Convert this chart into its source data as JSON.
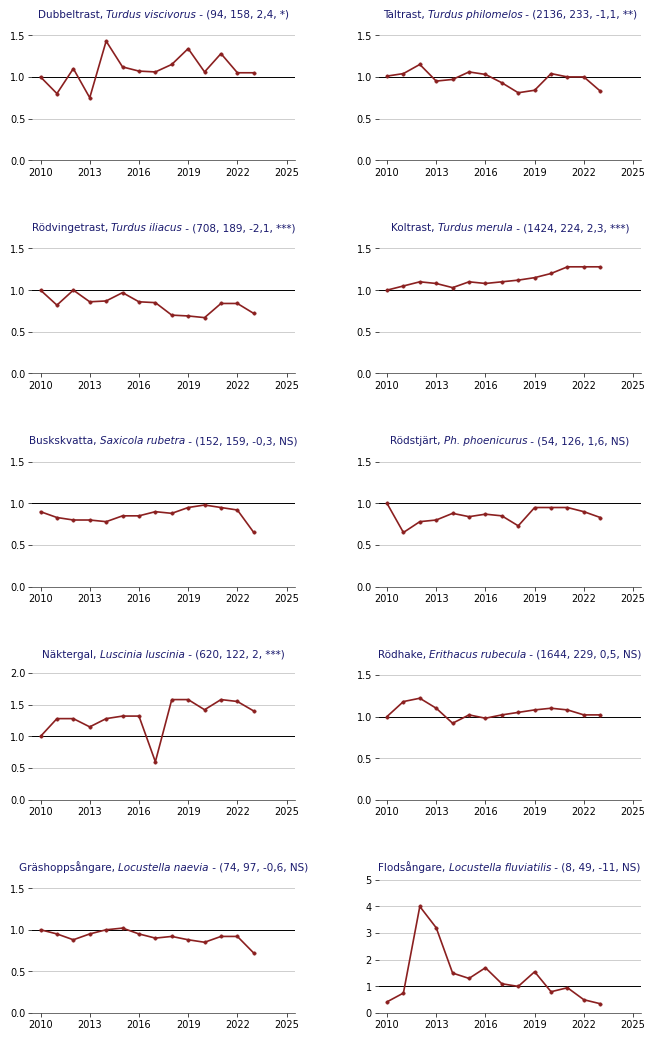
{
  "plots": [
    {
      "title_normal": "Dubbeltrast, ",
      "title_italic": "Turdus viscivorus",
      "title_suffix": " - (94, 158, 2,4, *)",
      "years": [
        2010,
        2011,
        2012,
        2013,
        2014,
        2015,
        2016,
        2017,
        2018,
        2019,
        2020,
        2021,
        2022,
        2023
      ],
      "values": [
        1.0,
        0.8,
        1.1,
        0.75,
        1.43,
        1.12,
        1.07,
        1.06,
        1.15,
        1.34,
        1.06,
        1.28,
        1.05,
        1.05
      ],
      "ylim": [
        0.0,
        1.6
      ],
      "yticks": [
        0.0,
        0.5,
        1.0,
        1.5
      ]
    },
    {
      "title_normal": "Taltrast, ",
      "title_italic": "Turdus philomelos",
      "title_suffix": " - (2136, 233, -1,1, **)",
      "years": [
        2010,
        2011,
        2012,
        2013,
        2014,
        2015,
        2016,
        2017,
        2018,
        2019,
        2020,
        2021,
        2022,
        2023
      ],
      "values": [
        1.01,
        1.04,
        1.15,
        0.95,
        0.97,
        1.06,
        1.03,
        0.93,
        0.81,
        0.84,
        1.04,
        1.0,
        1.0,
        0.83
      ],
      "ylim": [
        0.0,
        1.6
      ],
      "yticks": [
        0.0,
        0.5,
        1.0,
        1.5
      ]
    },
    {
      "title_normal": "Rödvingetrast, ",
      "title_italic": "Turdus iliacus",
      "title_suffix": " - (708, 189, -2,1, ***)",
      "years": [
        2010,
        2011,
        2012,
        2013,
        2014,
        2015,
        2016,
        2017,
        2018,
        2019,
        2020,
        2021,
        2022,
        2023
      ],
      "values": [
        1.0,
        0.82,
        1.0,
        0.86,
        0.87,
        0.97,
        0.86,
        0.85,
        0.7,
        0.69,
        0.67,
        0.84,
        0.84,
        0.72
      ],
      "ylim": [
        0.0,
        1.6
      ],
      "yticks": [
        0.0,
        0.5,
        1.0,
        1.5
      ]
    },
    {
      "title_normal": "Koltrast, ",
      "title_italic": "Turdus merula",
      "title_suffix": " - (1424, 224, 2,3, ***)",
      "years": [
        2010,
        2011,
        2012,
        2013,
        2014,
        2015,
        2016,
        2017,
        2018,
        2019,
        2020,
        2021,
        2022,
        2023
      ],
      "values": [
        1.0,
        1.05,
        1.1,
        1.08,
        1.03,
        1.1,
        1.08,
        1.1,
        1.12,
        1.15,
        1.2,
        1.28,
        1.28,
        1.28
      ],
      "ylim": [
        0.0,
        1.6
      ],
      "yticks": [
        0.0,
        0.5,
        1.0,
        1.5
      ]
    },
    {
      "title_normal": "Buskskvatta, ",
      "title_italic": "Saxicola rubetra",
      "title_suffix": " - (152, 159, -0,3, NS)",
      "years": [
        2010,
        2011,
        2012,
        2013,
        2014,
        2015,
        2016,
        2017,
        2018,
        2019,
        2020,
        2021,
        2022,
        2023
      ],
      "values": [
        0.9,
        0.83,
        0.8,
        0.8,
        0.78,
        0.85,
        0.85,
        0.9,
        0.88,
        0.95,
        0.98,
        0.95,
        0.92,
        0.65
      ],
      "ylim": [
        0.0,
        1.6
      ],
      "yticks": [
        0.0,
        0.5,
        1.0,
        1.5
      ]
    },
    {
      "title_normal": "Rödstjärt, ",
      "title_italic": "Ph. phoenicurus",
      "title_suffix": " - (54, 126, 1,6, NS)",
      "years": [
        2010,
        2011,
        2012,
        2013,
        2014,
        2015,
        2016,
        2017,
        2018,
        2019,
        2020,
        2021,
        2022,
        2023
      ],
      "values": [
        1.0,
        0.65,
        0.78,
        0.8,
        0.88,
        0.84,
        0.87,
        0.85,
        0.73,
        0.95,
        0.95,
        0.95,
        0.9,
        0.83
      ],
      "ylim": [
        0.0,
        1.6
      ],
      "yticks": [
        0.0,
        0.5,
        1.0,
        1.5
      ]
    },
    {
      "title_normal": "Näktergal, ",
      "title_italic": "Luscinia luscinia",
      "title_suffix": " - (620, 122, 2, ***)",
      "years": [
        2010,
        2011,
        2012,
        2013,
        2014,
        2015,
        2016,
        2017,
        2018,
        2019,
        2020,
        2021,
        2022,
        2023
      ],
      "values": [
        1.0,
        1.28,
        1.28,
        1.15,
        1.28,
        1.32,
        1.32,
        0.6,
        1.58,
        1.58,
        1.42,
        1.58,
        1.55,
        1.4
      ],
      "ylim": [
        0.0,
        2.1
      ],
      "yticks": [
        0.0,
        0.5,
        1.0,
        1.5,
        2.0
      ]
    },
    {
      "title_normal": "Rödhake, ",
      "title_italic": "Erithacus rubecula",
      "title_suffix": " - (1644, 229, 0,5, NS)",
      "years": [
        2010,
        2011,
        2012,
        2013,
        2014,
        2015,
        2016,
        2017,
        2018,
        2019,
        2020,
        2021,
        2022,
        2023
      ],
      "values": [
        1.0,
        1.18,
        1.22,
        1.1,
        0.92,
        1.02,
        0.98,
        1.02,
        1.05,
        1.08,
        1.1,
        1.08,
        1.02,
        1.02
      ],
      "ylim": [
        0.0,
        1.6
      ],
      "yticks": [
        0.0,
        0.5,
        1.0,
        1.5
      ]
    },
    {
      "title_normal": "Gräshoppsångare, ",
      "title_italic": "Locustella naevia",
      "title_suffix": " - (74, 97, -0,6, NS)",
      "years": [
        2010,
        2011,
        2012,
        2013,
        2014,
        2015,
        2016,
        2017,
        2018,
        2019,
        2020,
        2021,
        2022,
        2023
      ],
      "values": [
        1.0,
        0.95,
        0.88,
        0.95,
        1.0,
        1.02,
        0.95,
        0.9,
        0.92,
        0.88,
        0.85,
        0.92,
        0.92,
        0.72
      ],
      "ylim": [
        0.0,
        1.6
      ],
      "yticks": [
        0.0,
        0.5,
        1.0,
        1.5
      ]
    },
    {
      "title_normal": "Flodsångare, ",
      "title_italic": "Locustella fluviatilis",
      "title_suffix": " - (8, 49, -11, NS)",
      "years": [
        2010,
        2011,
        2012,
        2013,
        2014,
        2015,
        2016,
        2017,
        2018,
        2019,
        2020,
        2021,
        2022,
        2023
      ],
      "values": [
        0.42,
        0.75,
        4.0,
        3.2,
        1.5,
        1.3,
        1.7,
        1.1,
        1.0,
        1.55,
        0.8,
        0.95,
        0.5,
        0.35
      ],
      "ylim": [
        0.0,
        5.0
      ],
      "yticks": [
        0,
        1,
        2,
        3,
        4,
        5
      ]
    }
  ],
  "line_color": "#8B2020",
  "line_width": 1.2,
  "marker": "o",
  "marker_size": 2.5,
  "hline_color": "black",
  "hline_lw": 0.7,
  "bg_color": "white",
  "grid_color": "#aaaaaa",
  "grid_lw": 0.4,
  "tick_label_size": 7,
  "title_size": 7.5,
  "title_color": "#1a1a6e",
  "xlim": [
    2009.5,
    2025.5
  ],
  "xticks": [
    2010,
    2013,
    2016,
    2019,
    2022,
    2025
  ]
}
